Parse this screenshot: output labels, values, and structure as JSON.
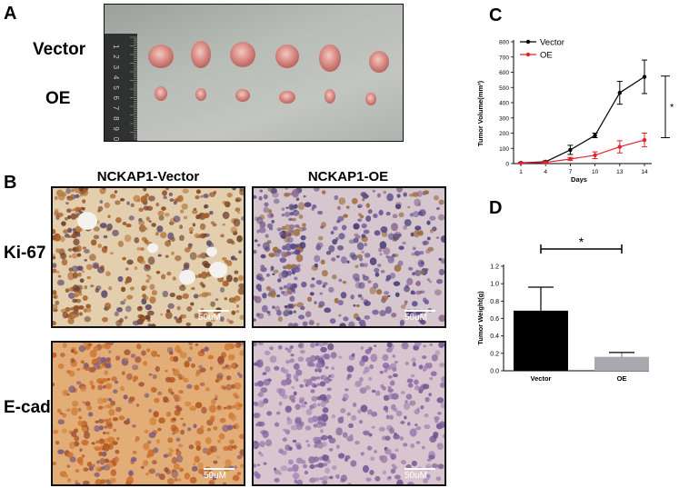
{
  "panels": {
    "a": {
      "letter": "A",
      "row_labels": [
        "Vector",
        "OE"
      ],
      "ruler_numbers": [
        "1",
        "2",
        "3",
        "4",
        "5",
        "6",
        "7",
        "8",
        "9",
        "0"
      ]
    },
    "b": {
      "letter": "B",
      "col_titles": [
        "NCKAP1-Vector",
        "NCKAP1-OE"
      ],
      "row_labels": [
        "Ki-67",
        "E-cad"
      ],
      "scale_label": "50uM"
    },
    "c": {
      "letter": "C"
    },
    "d": {
      "letter": "D"
    }
  },
  "colors": {
    "vector": "#000000",
    "oe": "#e8202a",
    "bar_vector": "#000000",
    "bar_oe": "#a8a8ae"
  },
  "chart_data": [
    {
      "id": "C",
      "type": "line",
      "x": [
        1,
        4,
        7,
        10,
        13,
        14
      ],
      "xlabel": "Days",
      "ylabel": "Tumor Volume(mm³)",
      "ylim": [
        0,
        800
      ],
      "yticks": [
        0,
        100,
        200,
        300,
        400,
        500,
        600,
        700,
        800
      ],
      "series": [
        {
          "name": "Vector",
          "values": [
            5,
            12,
            90,
            185,
            465,
            570
          ],
          "errors": [
            3,
            6,
            30,
            15,
            75,
            110
          ]
        },
        {
          "name": "OE",
          "values": [
            3,
            8,
            30,
            55,
            110,
            155
          ],
          "errors": [
            2,
            4,
            10,
            22,
            40,
            45
          ]
        }
      ],
      "legend": "top-left",
      "significance": "*"
    },
    {
      "id": "D",
      "type": "bar",
      "categories": [
        "Vector",
        "OE"
      ],
      "values": [
        0.69,
        0.16
      ],
      "errors": [
        0.27,
        0.05
      ],
      "ylabel": "Tumor Weight(g)",
      "ylim": [
        0,
        1.2
      ],
      "yticks": [
        0.0,
        0.2,
        0.4,
        0.6,
        0.8,
        1.0,
        1.2
      ],
      "significance": "*"
    }
  ]
}
